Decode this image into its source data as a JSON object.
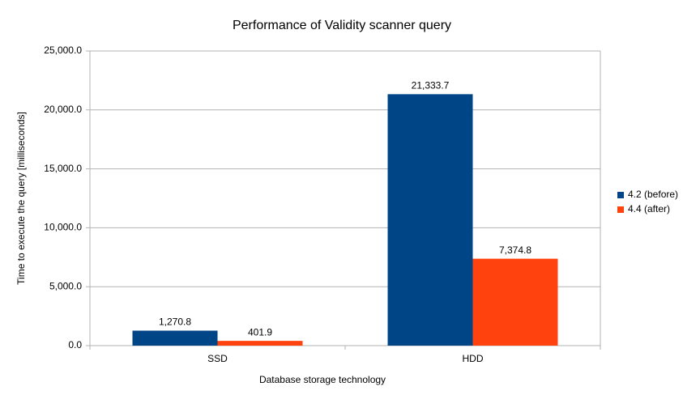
{
  "chart_data": {
    "type": "bar",
    "title": "Performance of Validity scanner query",
    "x_label": "Database storage technology",
    "y_label": "Time to execute the query [milliseconds]",
    "categories": [
      "SSD",
      "HDD"
    ],
    "series": [
      {
        "name": "4.2 (before)",
        "color": "#004586",
        "values": [
          1270.8,
          21333.7
        ],
        "value_labels": [
          "1,270.8",
          "21,333.7"
        ]
      },
      {
        "name": "4.4 (after)",
        "color": "#ff420e",
        "values": [
          401.9,
          7374.8
        ],
        "value_labels": [
          "401.9",
          "7,374.8"
        ]
      }
    ],
    "ylim": [
      0,
      25000
    ],
    "yticks": [
      {
        "value": 0,
        "label": "0.0"
      },
      {
        "value": 5000,
        "label": "5,000.0"
      },
      {
        "value": 10000,
        "label": "10,000.0"
      },
      {
        "value": 15000,
        "label": "15,000.0"
      },
      {
        "value": 20000,
        "label": "20,000.0"
      },
      {
        "value": 25000,
        "label": "25,000.0"
      }
    ],
    "grid": true,
    "legend": "right"
  }
}
